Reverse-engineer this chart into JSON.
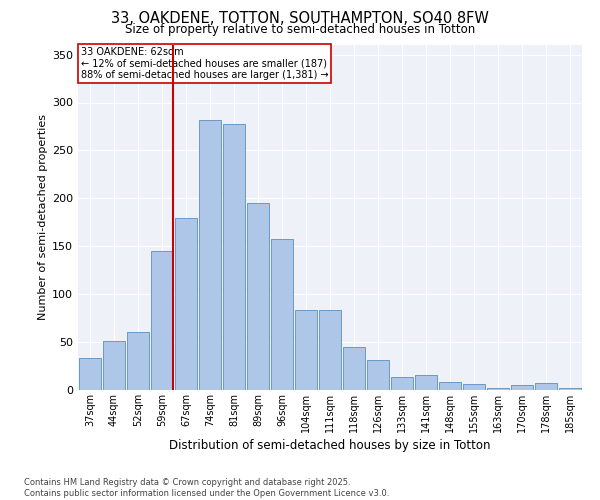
{
  "title_line1": "33, OAKDENE, TOTTON, SOUTHAMPTON, SO40 8FW",
  "title_line2": "Size of property relative to semi-detached houses in Totton",
  "xlabel": "Distribution of semi-detached houses by size in Totton",
  "ylabel": "Number of semi-detached properties",
  "categories": [
    "37sqm",
    "44sqm",
    "52sqm",
    "59sqm",
    "67sqm",
    "74sqm",
    "81sqm",
    "89sqm",
    "96sqm",
    "104sqm",
    "111sqm",
    "118sqm",
    "126sqm",
    "133sqm",
    "141sqm",
    "148sqm",
    "155sqm",
    "163sqm",
    "170sqm",
    "178sqm",
    "185sqm"
  ],
  "values": [
    33,
    51,
    61,
    145,
    180,
    282,
    278,
    195,
    158,
    84,
    84,
    45,
    31,
    14,
    16,
    8,
    6,
    2,
    5,
    7,
    2
  ],
  "bar_color": "#aec6e8",
  "bar_edge_color": "#5b8fbe",
  "vline_x_index": 3,
  "vline_color": "#cc0000",
  "annotation_title": "33 OAKDENE: 62sqm",
  "annotation_line1": "← 12% of semi-detached houses are smaller (187)",
  "annotation_line2": "88% of semi-detached houses are larger (1,381) →",
  "ylim": [
    0,
    360
  ],
  "yticks": [
    0,
    50,
    100,
    150,
    200,
    250,
    300,
    350
  ],
  "bg_color": "#eef2f8",
  "footer_line1": "Contains HM Land Registry data © Crown copyright and database right 2025.",
  "footer_line2": "Contains public sector information licensed under the Open Government Licence v3.0."
}
